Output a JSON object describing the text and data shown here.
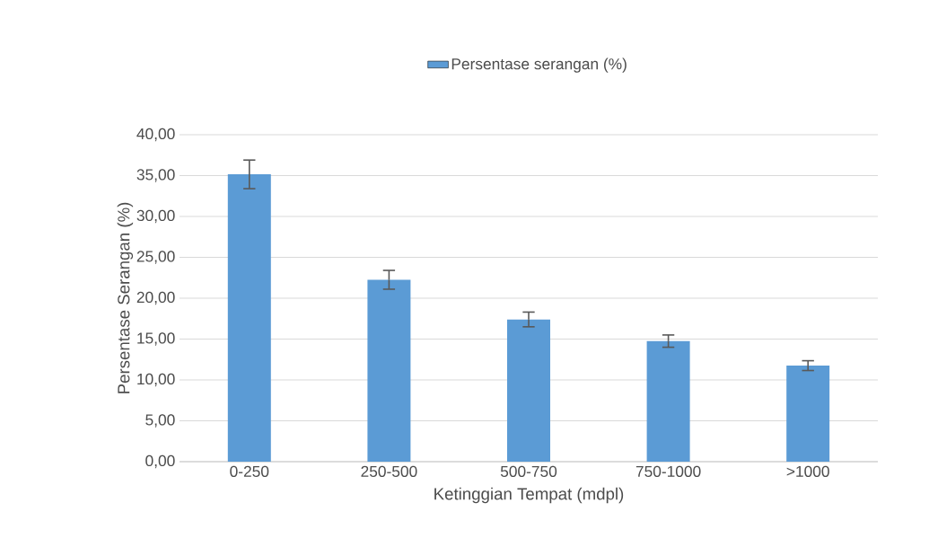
{
  "chart_data": {
    "type": "bar",
    "xlabel": "Ketinggian Tempat (mdpl)",
    "ylabel": "Persentase Serangan (%)",
    "categories": [
      "0-250",
      "250-500",
      "500-750",
      "750-1000",
      ">1000"
    ],
    "series": [
      {
        "name": "Persentase serangan (%)",
        "color": "#5b9bd5",
        "values": [
          35.15,
          22.25,
          17.4,
          14.75,
          11.75
        ],
        "errors": [
          1.75,
          1.15,
          0.9,
          0.75,
          0.6
        ]
      }
    ],
    "ylim": [
      0,
      40
    ],
    "yticks": [
      {
        "value": 0,
        "label": "0,00"
      },
      {
        "value": 5,
        "label": "5,00"
      },
      {
        "value": 10,
        "label": "10,00"
      },
      {
        "value": 15,
        "label": "15,00"
      },
      {
        "value": 20,
        "label": "20,00"
      },
      {
        "value": 25,
        "label": "25,00"
      },
      {
        "value": 30,
        "label": "30,00"
      },
      {
        "value": 35,
        "label": "35,00"
      },
      {
        "value": 40,
        "label": "40,00"
      }
    ],
    "grid": "y",
    "legend": "top"
  }
}
